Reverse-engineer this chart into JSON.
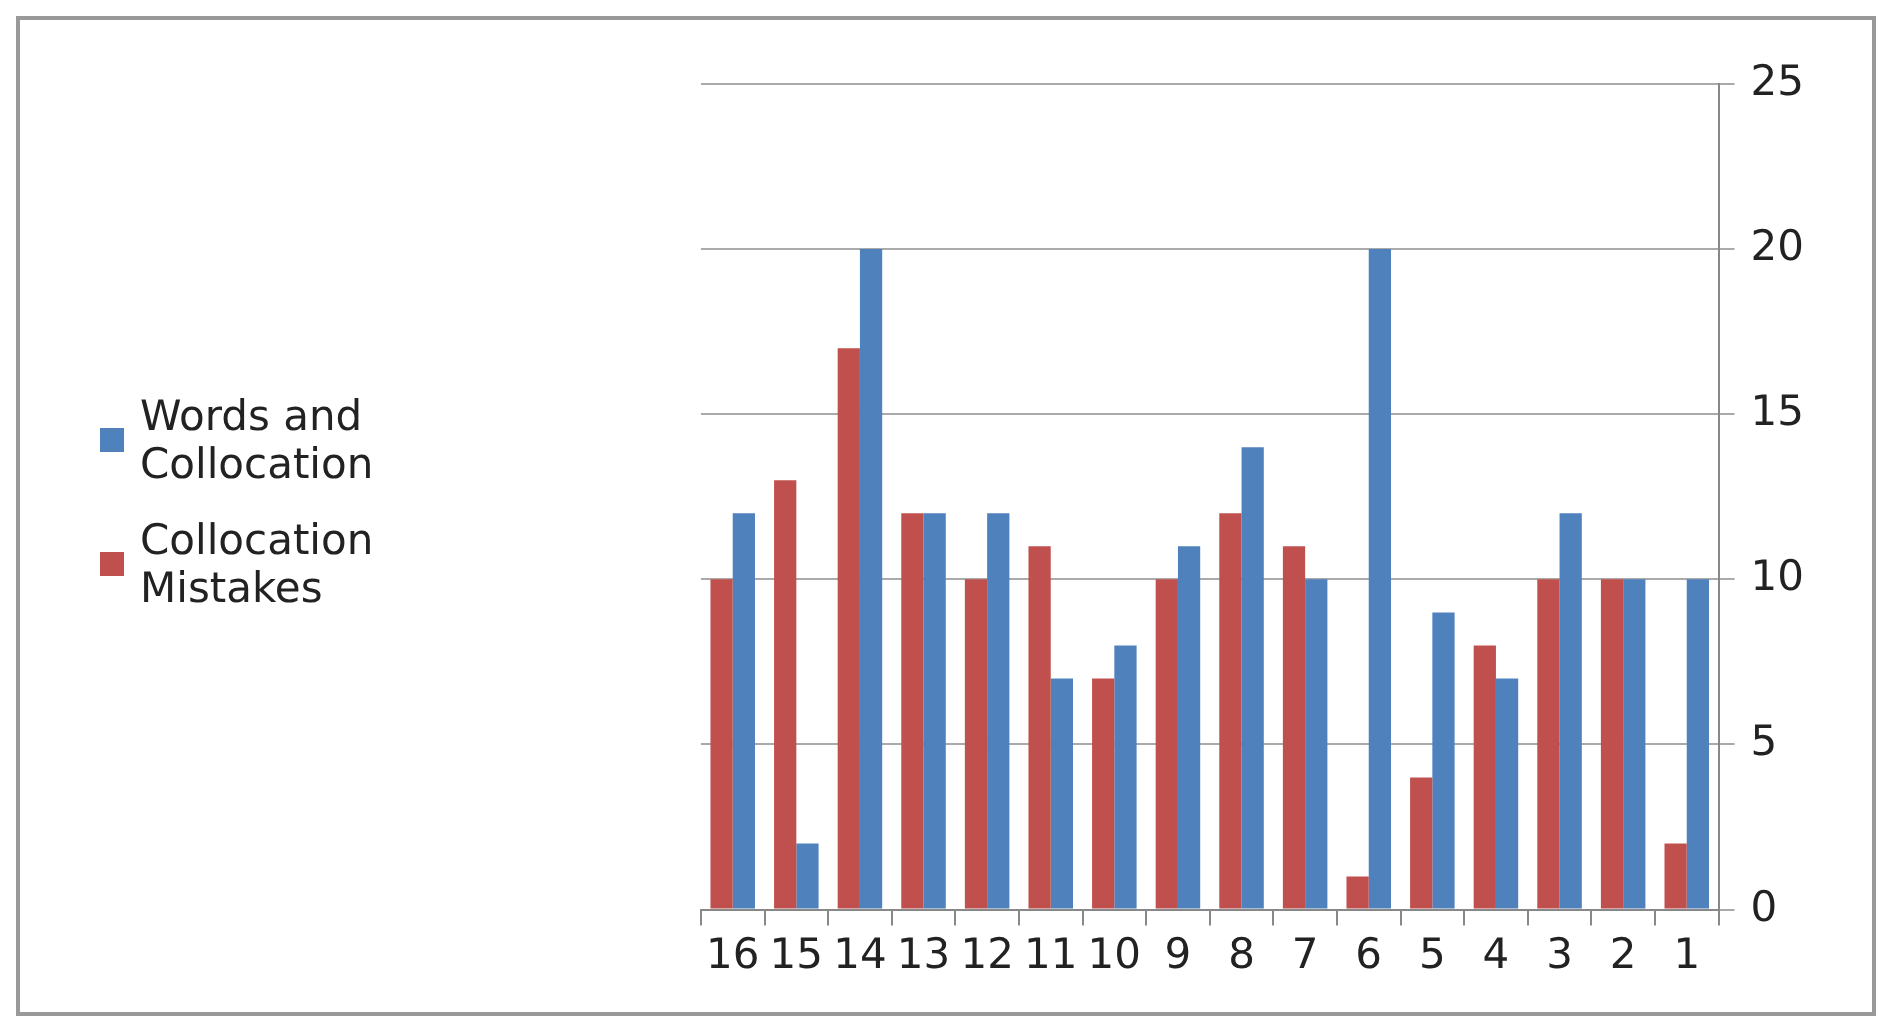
{
  "chart_data": {
    "type": "bar",
    "categories": [
      "16",
      "15",
      "14",
      "13",
      "12",
      "11",
      "10",
      "9",
      "8",
      "7",
      "6",
      "5",
      "4",
      "3",
      "2",
      "1"
    ],
    "series": [
      {
        "name": "Collocation Mistakes",
        "color": "#c0504d",
        "values": [
          10,
          13,
          17,
          12,
          10,
          11,
          7,
          10,
          12,
          11,
          1,
          4,
          8,
          10,
          10,
          2
        ]
      },
      {
        "name": "Words and Collocation",
        "color": "#4f81bd",
        "values": [
          12,
          2,
          20,
          12,
          12,
          7,
          8,
          11,
          14,
          10,
          20,
          9,
          7,
          12,
          10,
          10
        ]
      }
    ],
    "ylim": [
      0,
      25
    ],
    "yticks": [
      0,
      5,
      10,
      15,
      20,
      25
    ],
    "grid": "y",
    "legend": "left"
  }
}
